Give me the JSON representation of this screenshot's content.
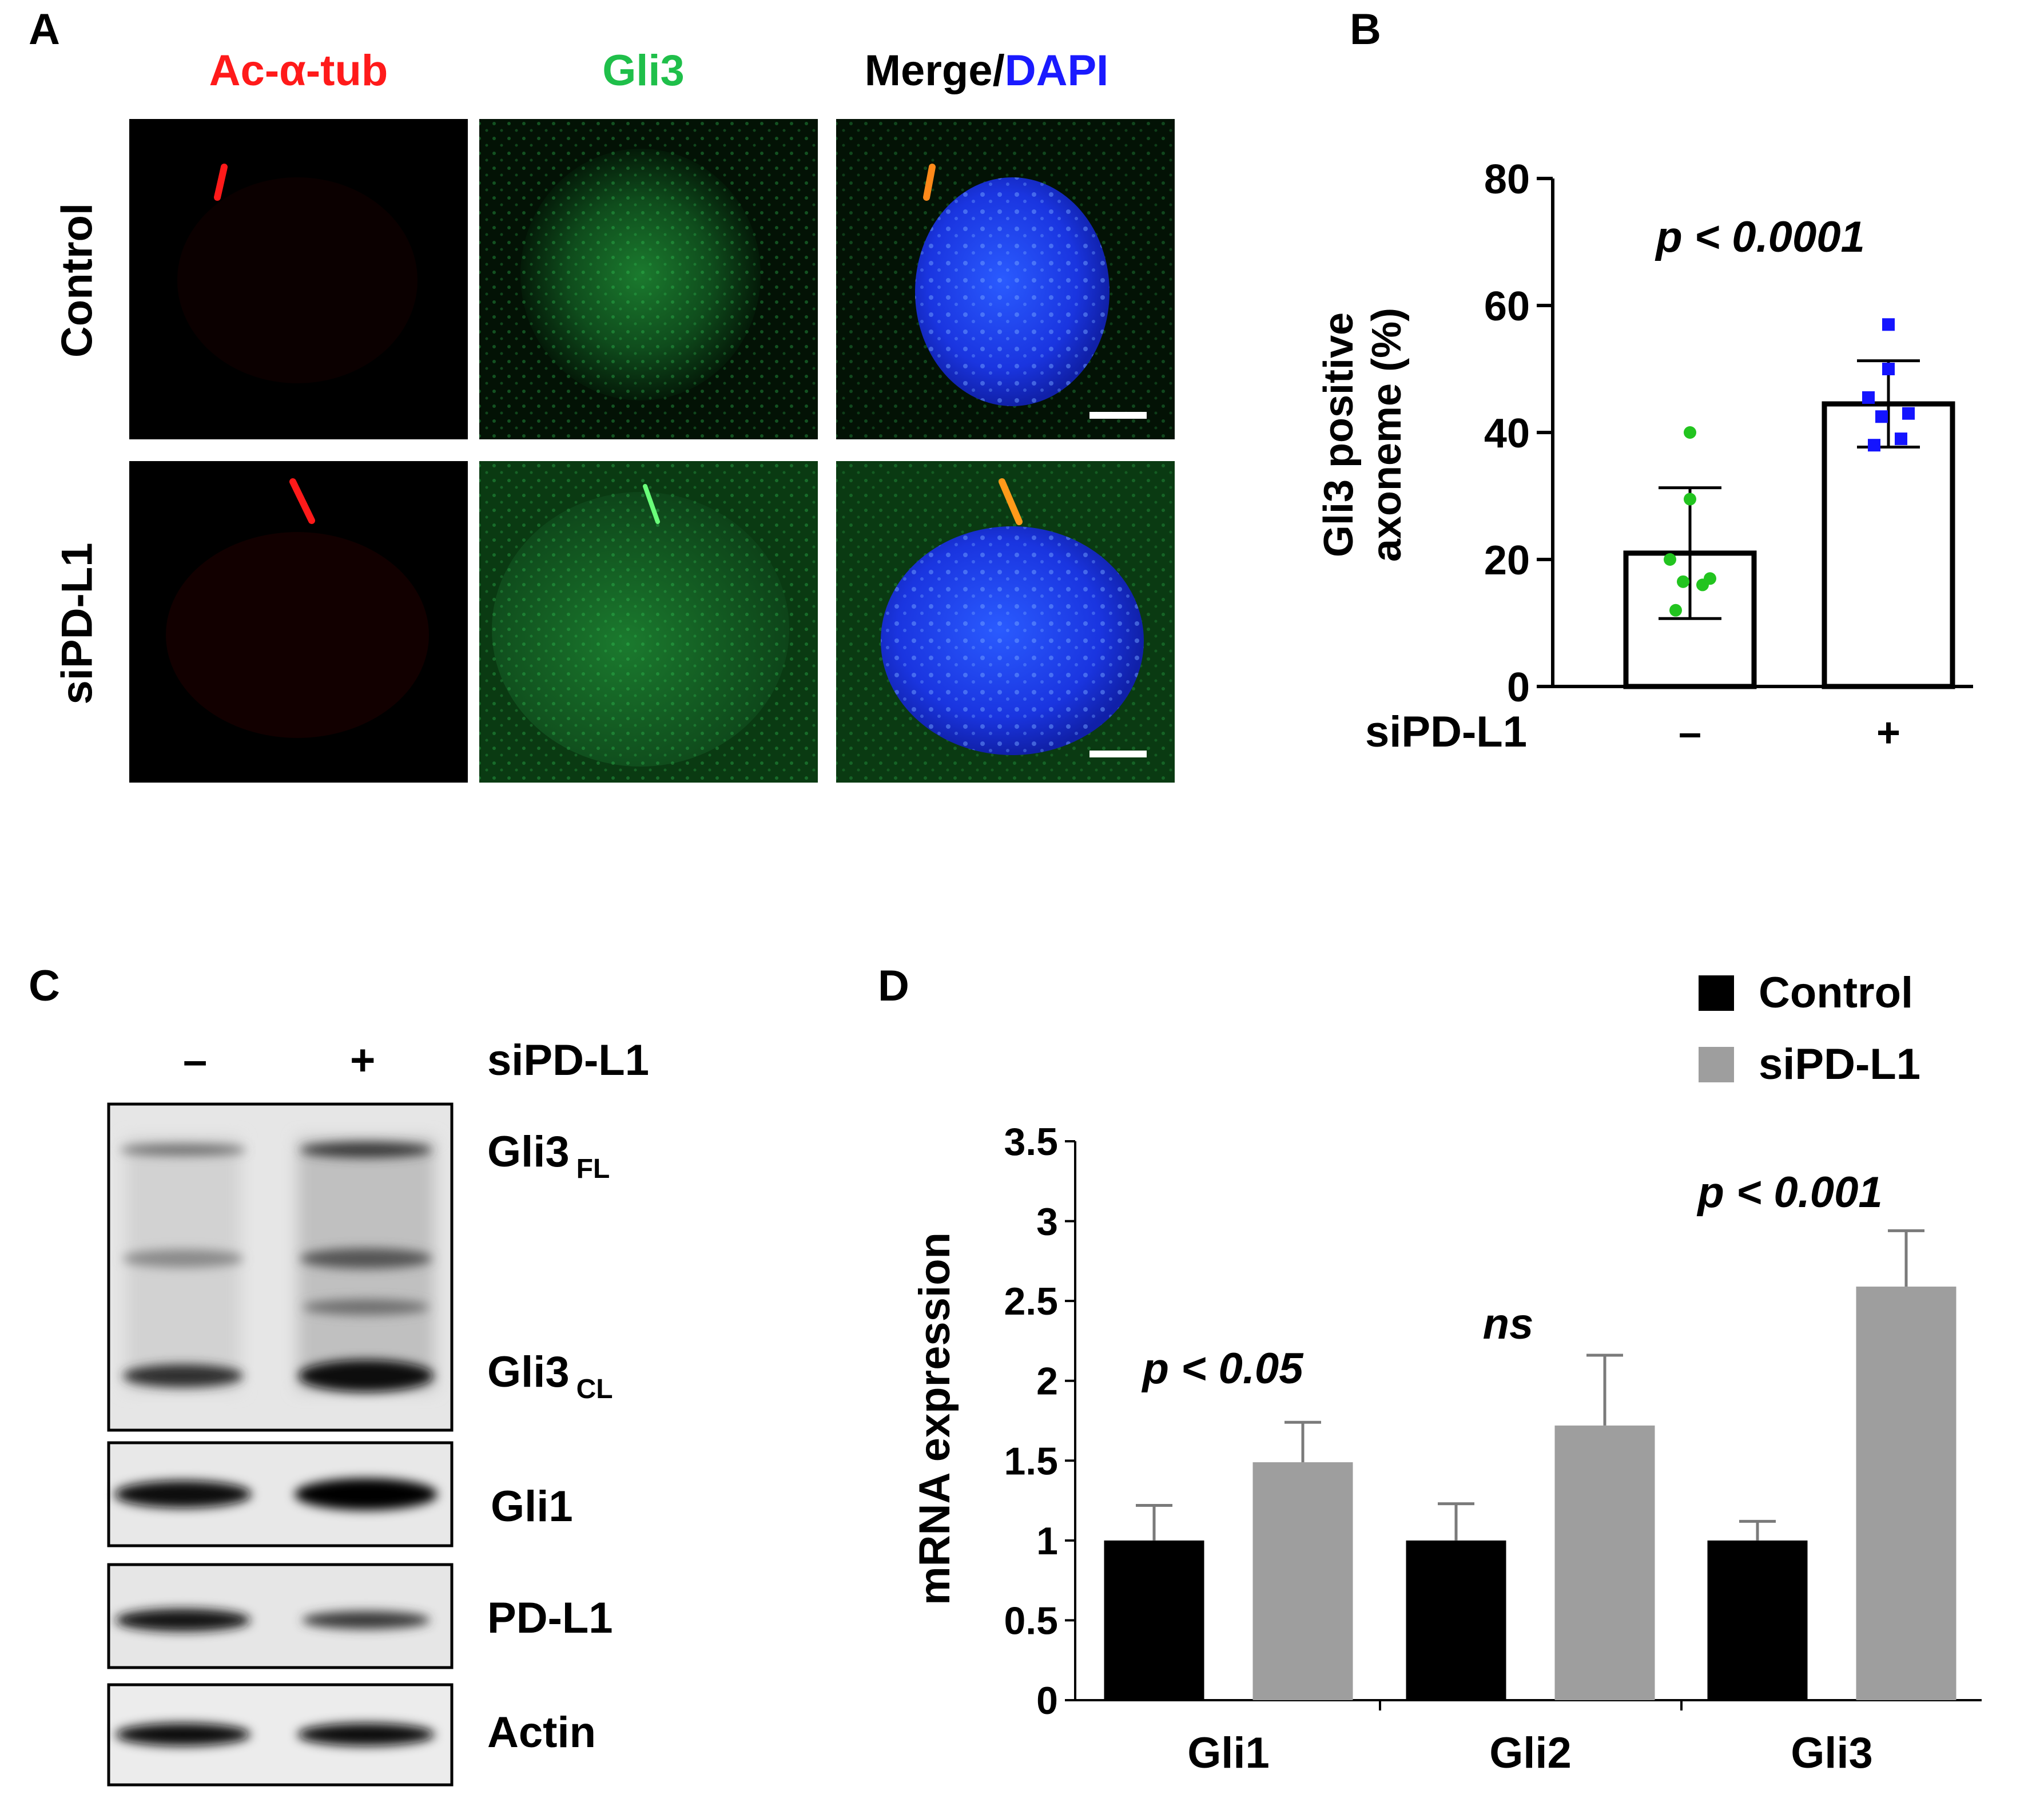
{
  "panel_labels": {
    "a": "A",
    "b": "B",
    "c": "C",
    "d": "D"
  },
  "panel_a": {
    "col_headers": {
      "red": "Ac-α-tub",
      "green": "Gli3",
      "merge_prefix": "Merge/",
      "merge_suffix": "DAPI"
    },
    "row_labels": [
      "Control",
      "siPD-L1"
    ],
    "colors": {
      "red": "#ff1a1a",
      "green": "#1fbf4a",
      "blue": "#1a1aff",
      "panel_bg": "#000000"
    }
  },
  "panel_c": {
    "lane_labels": [
      "–",
      "+"
    ],
    "treatment": "siPD-L1",
    "bands": [
      {
        "name": "Gli3",
        "sub": "FL"
      },
      {
        "name": "Gli3",
        "sub": "CL"
      },
      {
        "name": "Gli1",
        "sub": ""
      },
      {
        "name": "PD-L1",
        "sub": ""
      },
      {
        "name": "Actin",
        "sub": ""
      }
    ]
  },
  "chart_data": [
    {
      "type": "bar",
      "panel": "B",
      "ylabel_line1": "Gli3 positive",
      "ylabel_line2": "axoneme (%)",
      "x_group_label": "siPD-L1",
      "categories": [
        "–",
        "+"
      ],
      "values": [
        21,
        44.5
      ],
      "errors": [
        10.3,
        6.8
      ],
      "points": [
        [
          40,
          29.5,
          20,
          17,
          16.5,
          16,
          12
        ],
        [
          57,
          50,
          45.5,
          43,
          42.5,
          39,
          38
        ]
      ],
      "point_colors": [
        "#22c41f",
        "#1414ff"
      ],
      "ylim": [
        0,
        80
      ],
      "yticks": [
        0,
        20,
        40,
        60,
        80
      ],
      "annotation": "p < 0.0001"
    },
    {
      "type": "bar",
      "panel": "D",
      "ylabel": "mRNA expression",
      "categories": [
        "Gli1",
        "Gli2",
        "Gli3"
      ],
      "series": [
        {
          "name": "Control",
          "color": "#000000",
          "values": [
            1.0,
            1.0,
            1.0
          ],
          "errors": [
            0.22,
            0.23,
            0.12
          ]
        },
        {
          "name": "siPD-L1",
          "color": "#9e9e9e",
          "values": [
            1.49,
            1.72,
            2.59
          ],
          "errors": [
            0.25,
            0.44,
            0.35
          ]
        }
      ],
      "ylim": [
        0,
        3.5
      ],
      "yticks": [
        "0",
        "0.5",
        "1",
        "1.5",
        "2",
        "2.5",
        "3",
        "3.5"
      ],
      "annotations": [
        "p < 0.05",
        "ns",
        "p < 0.001"
      ],
      "legend_position": "top-right"
    }
  ]
}
